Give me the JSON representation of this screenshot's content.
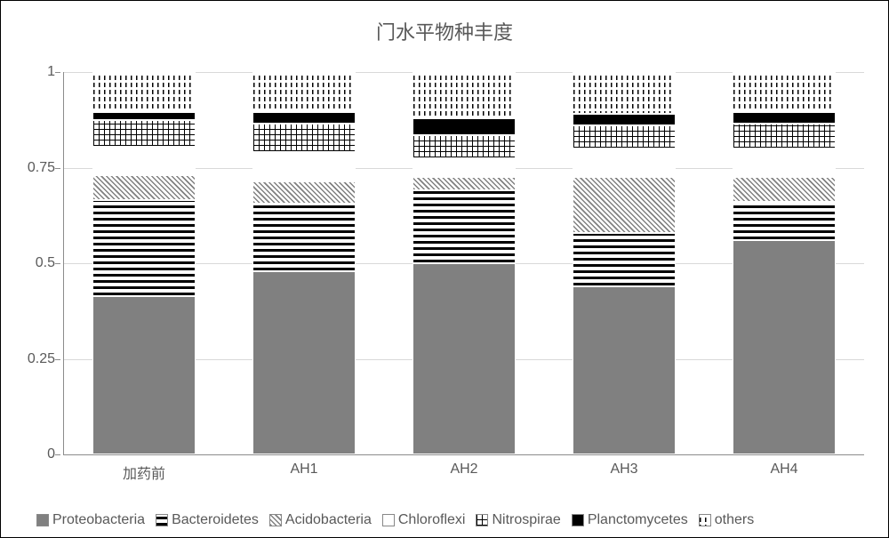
{
  "chart": {
    "type": "stacked-bar",
    "title": "门水平物种丰度",
    "title_fontsize": 22,
    "title_color": "#595959",
    "background_color": "#ffffff",
    "grid_color": "#d9d9d9",
    "axis_color": "#8c8c8c",
    "label_fontsize": 16,
    "label_color": "#595959",
    "ylim": [
      0,
      1
    ],
    "ytick_step": 0.25,
    "yticks": [
      "0",
      "0.25",
      "0.5",
      "0.75",
      "1"
    ],
    "bar_width_ratio": 0.64,
    "categories": [
      "加药前",
      "AH1",
      "AH2",
      "AH3",
      "AH4"
    ],
    "series": [
      {
        "key": "proteobacteria",
        "label": "Proteobacteria",
        "fill_class": "fill-proteobacteria",
        "pattern": "solid-gray",
        "color": "#808080"
      },
      {
        "key": "bacteroidetes",
        "label": "Bacteroidetes",
        "fill_class": "fill-bacteroidetes",
        "pattern": "hstripe",
        "color": "#000000"
      },
      {
        "key": "acidobacteria",
        "label": "Acidobacteria",
        "fill_class": "fill-acidobacteria",
        "pattern": "crosshatch",
        "color": "#808080"
      },
      {
        "key": "chloroflexi",
        "label": "Chloroflexi",
        "fill_class": "fill-chloroflexi",
        "pattern": "dash-h",
        "color": "#000000"
      },
      {
        "key": "nitrospirae",
        "label": "Nitrospirae",
        "fill_class": "fill-nitrospirae",
        "pattern": "grid",
        "color": "#000000"
      },
      {
        "key": "planctomycetes",
        "label": "Planctomycetes",
        "fill_class": "fill-planctomycetes",
        "pattern": "solid-black",
        "color": "#000000"
      },
      {
        "key": "others",
        "label": "others",
        "fill_class": "fill-others",
        "pattern": "vstripe-dash",
        "color": "#000000"
      }
    ],
    "data": {
      "加药前": {
        "proteobacteria": 0.415,
        "bacteroidetes": 0.25,
        "acidobacteria": 0.065,
        "chloroflexi": 0.075,
        "nitrospirae": 0.07,
        "planctomycetes": 0.02,
        "others": 0.105
      },
      "AH1": {
        "proteobacteria": 0.48,
        "bacteroidetes": 0.175,
        "acidobacteria": 0.06,
        "chloroflexi": 0.075,
        "nitrospirae": 0.075,
        "planctomycetes": 0.03,
        "others": 0.105
      },
      "AH2": {
        "proteobacteria": 0.5,
        "bacteroidetes": 0.19,
        "acidobacteria": 0.035,
        "chloroflexi": 0.05,
        "nitrospirae": 0.06,
        "planctomycetes": 0.045,
        "others": 0.12
      },
      "AH3": {
        "proteobacteria": 0.44,
        "bacteroidetes": 0.14,
        "acidobacteria": 0.145,
        "chloroflexi": 0.075,
        "nitrospirae": 0.06,
        "planctomycetes": 0.03,
        "others": 0.11
      },
      "AH4": {
        "proteobacteria": 0.56,
        "bacteroidetes": 0.1,
        "acidobacteria": 0.065,
        "chloroflexi": 0.075,
        "nitrospirae": 0.065,
        "planctomycetes": 0.03,
        "others": 0.105
      }
    }
  }
}
